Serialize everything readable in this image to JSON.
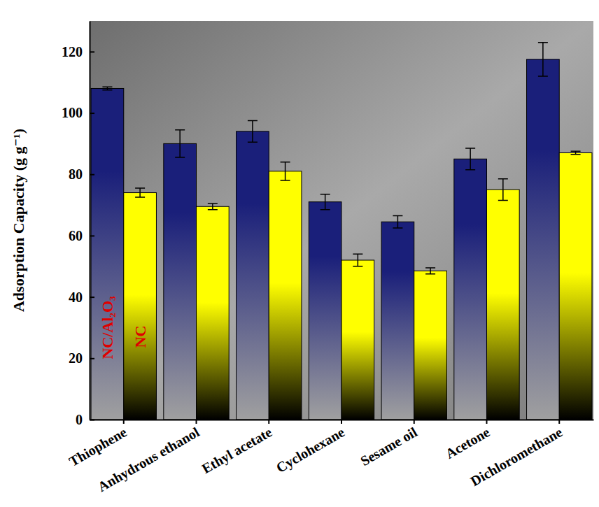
{
  "chart_data": {
    "type": "bar",
    "y_label": "Adsorption Capacity (g g⁻¹)",
    "categories": [
      "Thiophene",
      "Anhydrous ethanol",
      "Ethyl acetate",
      "Cyclohexane",
      "Sesame oil",
      "Acetone",
      "Dichloromethane"
    ],
    "series": [
      {
        "name": "NC/Al₂O₃",
        "color": "#1a1f7a",
        "values": [
          108,
          90,
          94,
          71,
          64.5,
          85,
          117.5
        ],
        "errors": [
          0.5,
          4.5,
          3.5,
          2.5,
          2,
          3.5,
          5.5
        ]
      },
      {
        "name": "NC",
        "color": "#ffff00",
        "values": [
          74,
          69.5,
          81,
          52,
          48.5,
          75,
          87
        ],
        "errors": [
          1.5,
          1,
          3,
          2,
          1,
          3.5,
          0.5
        ]
      }
    ],
    "ylim": [
      0,
      130
    ],
    "yticks": [
      0,
      20,
      40,
      60,
      80,
      100,
      120
    ],
    "legend": "bottom-left",
    "grid": false
  }
}
